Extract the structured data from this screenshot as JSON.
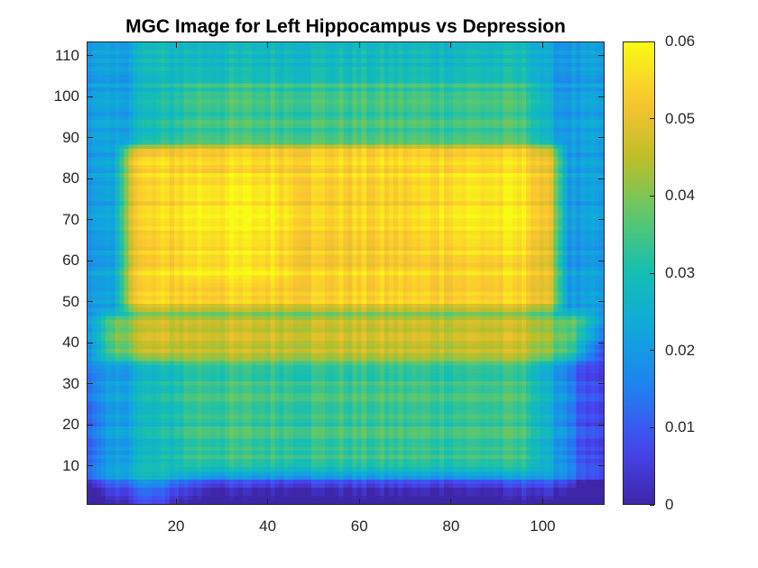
{
  "chart_data": {
    "type": "heatmap",
    "title": "MGC Image for Left Hippocampus vs Depression",
    "xlabel": "",
    "ylabel": "",
    "xlim": [
      0.5,
      113.5
    ],
    "ylim": [
      0.5,
      113.5
    ],
    "x_ticks": [
      "20",
      "40",
      "60",
      "80",
      "100"
    ],
    "y_ticks": [
      "10",
      "20",
      "30",
      "40",
      "50",
      "60",
      "70",
      "80",
      "90",
      "100",
      "110"
    ],
    "colormap": "parula",
    "color_limits": [
      0,
      0.06
    ],
    "colorbar_ticks": [
      "0",
      "0.01",
      "0.02",
      "0.03",
      "0.04",
      "0.05",
      "0.06"
    ],
    "grid_size": [
      113,
      113
    ],
    "approx_regions": [
      {
        "x": [
          10,
          105
        ],
        "y": [
          48,
          88
        ],
        "value": 0.055
      },
      {
        "x": [
          25,
          40
        ],
        "y": [
          60,
          80
        ],
        "value": 0.059
      },
      {
        "x": [
          2,
          113
        ],
        "y": [
          35,
          47
        ],
        "value": 0.037
      },
      {
        "x": [
          10,
          100
        ],
        "y": [
          90,
          113
        ],
        "value": 0.028
      },
      {
        "x": [
          10,
          100
        ],
        "y": [
          10,
          35
        ],
        "value": 0.03
      },
      {
        "x": [
          2,
          113
        ],
        "y": [
          1,
          7
        ],
        "value": 0.004
      },
      {
        "x": [
          108,
          113
        ],
        "y": [
          1,
          45
        ],
        "value": 0.006
      }
    ]
  }
}
